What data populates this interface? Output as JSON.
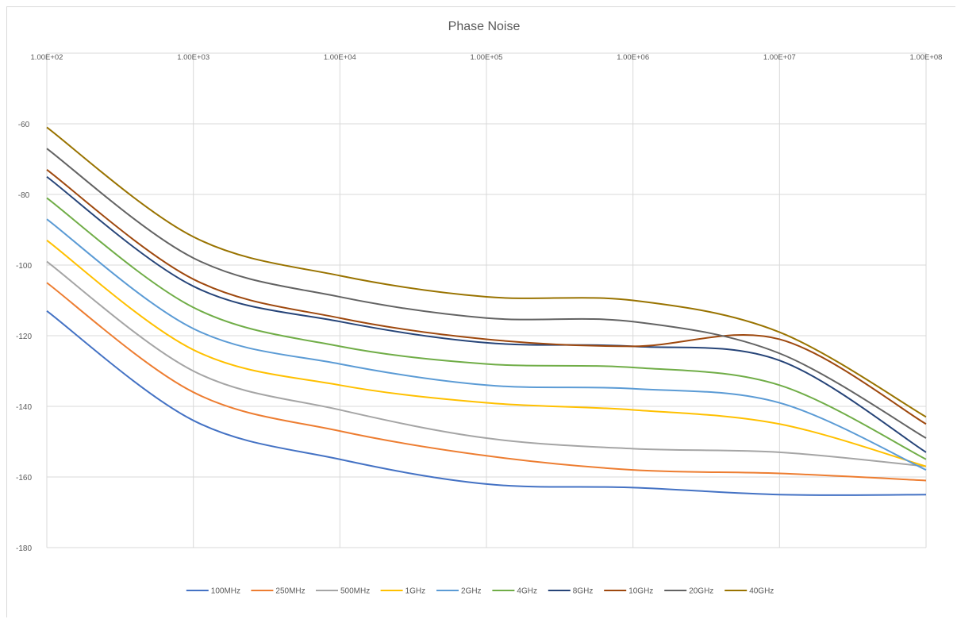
{
  "chart_data": {
    "type": "line",
    "title": "Phase Noise",
    "xlabel": "",
    "ylabel": "",
    "x_scale": "log",
    "x_axis_position": "top",
    "xlim": [
      100,
      100000000
    ],
    "ylim": [
      -180,
      -40
    ],
    "x_tick_labels": [
      "1.00E+02",
      "1.00E+03",
      "1.00E+04",
      "1.00E+05",
      "1.00E+06",
      "1.00E+07",
      "1.00E+08"
    ],
    "x_ticks": [
      100,
      1000,
      10000,
      100000,
      1000000,
      10000000,
      100000000
    ],
    "y_ticks": [
      -180,
      -160,
      -140,
      -120,
      -100,
      -80,
      -60
    ],
    "y_tick_labels": [
      "-180",
      "-160",
      "-140",
      "-120",
      "-100",
      "-80",
      "-60"
    ],
    "grid": true,
    "legend_position": "bottom",
    "x": [
      100,
      1000,
      10000,
      100000,
      1000000,
      10000000,
      100000000
    ],
    "series": [
      {
        "name": "100MHz",
        "color": "#4472c4",
        "values": [
          -113,
          -144,
          -155,
          -162,
          -163,
          -165,
          -165
        ]
      },
      {
        "name": "250MHz",
        "color": "#ed7d31",
        "values": [
          -105,
          -136,
          -147,
          -154,
          -158,
          -159,
          -161
        ]
      },
      {
        "name": "500MHz",
        "color": "#a5a5a5",
        "values": [
          -99,
          -130,
          -141,
          -149,
          -152,
          -153,
          -157
        ]
      },
      {
        "name": "1GHz",
        "color": "#ffc000",
        "values": [
          -93,
          -124,
          -134,
          -139,
          -141,
          -145,
          -157
        ]
      },
      {
        "name": "2GHz",
        "color": "#5b9bd5",
        "values": [
          -87,
          -118,
          -128,
          -134,
          -135,
          -139,
          -158
        ]
      },
      {
        "name": "4GHz",
        "color": "#70ad47",
        "values": [
          -81,
          -112,
          -123,
          -128,
          -129,
          -134,
          -155
        ]
      },
      {
        "name": "8GHz",
        "color": "#264478",
        "values": [
          -75,
          -106,
          -116,
          -122,
          -123,
          -127,
          -153
        ]
      },
      {
        "name": "10GHz",
        "color": "#9e480e",
        "values": [
          -73,
          -104,
          -115,
          -121,
          -123,
          -121,
          -145
        ]
      },
      {
        "name": "20GHz",
        "color": "#636363",
        "values": [
          -67,
          -98,
          -109,
          -115,
          -116,
          -125,
          -149
        ]
      },
      {
        "name": "40GHz",
        "color": "#997300",
        "values": [
          -61,
          -92,
          -103,
          -109,
          -110,
          -119,
          -143
        ]
      }
    ]
  }
}
